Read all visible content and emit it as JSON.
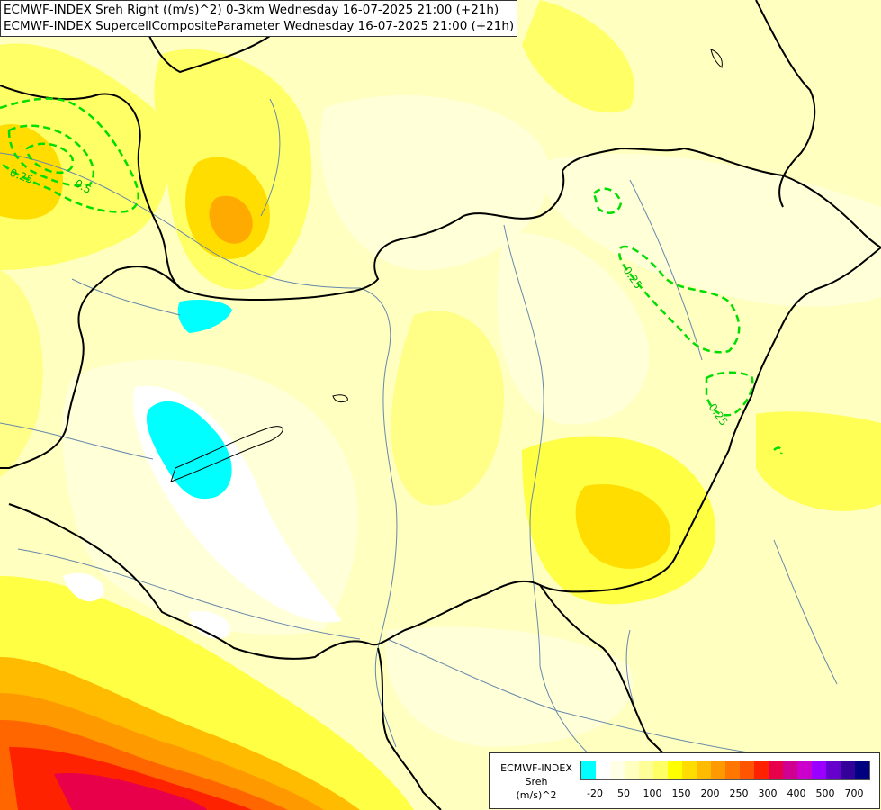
{
  "titles": {
    "line1": "ECMWF-INDEX Sreh Right ((m/s)^2) 0-3km Wednesday 16-07-2025 21:00 (+21h)",
    "line2": "ECMWF-INDEX SupercellCompositeParameter Wednesday 16-07-2025 21:00 (+21h)"
  },
  "contour_labels": [
    "0.25",
    "0.5",
    "0.25",
    "0.25",
    "0.25"
  ],
  "legend": {
    "title_line1": "ECMWF-INDEX",
    "title_line2": "Sreh",
    "title_line3": "(m/s)^2",
    "colors": [
      "#00ffff",
      "#ffffff",
      "#ffffe6",
      "#ffffc0",
      "#ffff99",
      "#ffff66",
      "#ffff00",
      "#ffdd00",
      "#ffbb00",
      "#ff9900",
      "#ff7700",
      "#ff5500",
      "#ff2200",
      "#e8004a",
      "#d00090",
      "#cc00cc",
      "#9900ff",
      "#6600cc",
      "#330099",
      "#000080"
    ],
    "ticks": [
      "-20",
      "50",
      "100",
      "150",
      "200",
      "250",
      "300",
      "400",
      "500",
      "700"
    ]
  }
}
